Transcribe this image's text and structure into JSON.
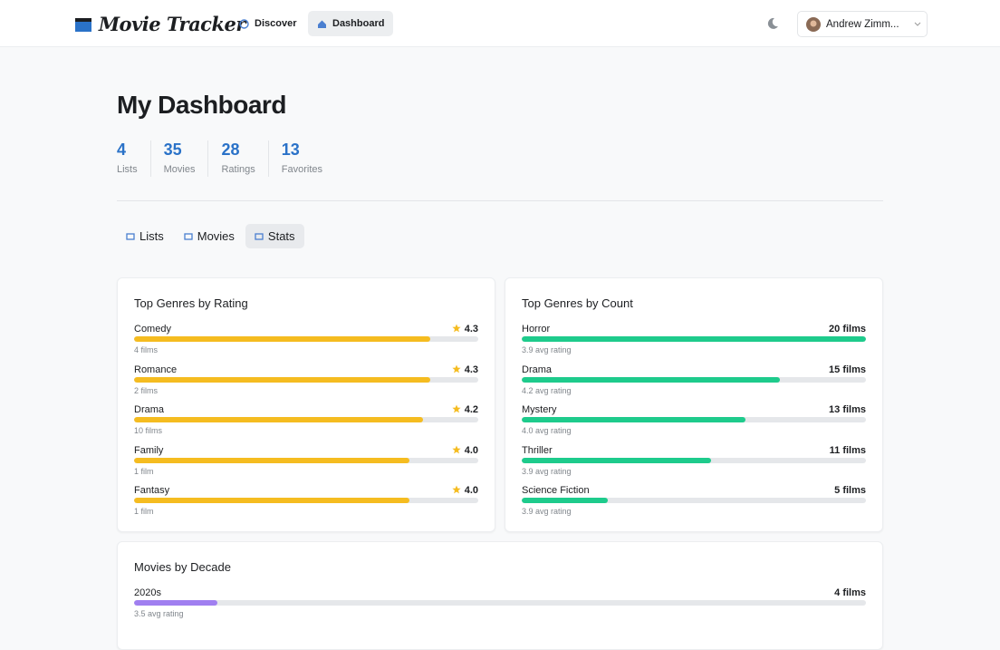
{
  "header": {
    "brand": "Movie Tracker",
    "nav": [
      "Discover",
      "Dashboard"
    ],
    "user": "Andrew Zimm..."
  },
  "page": {
    "title": "My Dashboard",
    "stats": [
      {
        "value": 4,
        "label": "Lists"
      },
      {
        "value": 35,
        "label": "Movies"
      },
      {
        "value": 28,
        "label": "Ratings"
      },
      {
        "value": 13,
        "label": "Favorites"
      }
    ],
    "tabs": [
      "Lists",
      "Movies",
      "Stats"
    ]
  },
  "panels": [
    {
      "title": "Top Genres by Rating",
      "color": "#f5bc20",
      "xlim": [
        0,
        5
      ],
      "items": [
        {
          "name": "Comedy",
          "value": 4.3,
          "value_label": "4.3",
          "sub": "4 films"
        },
        {
          "name": "Romance",
          "value": 4.3,
          "value_label": "4.3",
          "sub": "2 films"
        },
        {
          "name": "Drama",
          "value": 4.2,
          "value_label": "4.2",
          "sub": "10 films"
        },
        {
          "name": "Family",
          "value": 4.0,
          "value_label": "4.0",
          "sub": "1 film"
        },
        {
          "name": "Fantasy",
          "value": 4.0,
          "value_label": "4.0",
          "sub": "1 film"
        }
      ]
    },
    {
      "title": "Top Genres by Count",
      "color": "#1ecb8c",
      "xlim": [
        0,
        20
      ],
      "items": [
        {
          "name": "Horror",
          "value": 20,
          "value_label": "20 films",
          "sub": "3.9 avg rating"
        },
        {
          "name": "Drama",
          "value": 15,
          "value_label": "15 films",
          "sub": "4.2 avg rating"
        },
        {
          "name": "Mystery",
          "value": 13,
          "value_label": "13 films",
          "sub": "4.0 avg rating"
        },
        {
          "name": "Thriller",
          "value": 11,
          "value_label": "11 films",
          "sub": "3.9 avg rating"
        },
        {
          "name": "Science Fiction",
          "value": 5,
          "value_label": "5 films",
          "sub": "3.9 avg rating"
        }
      ]
    },
    {
      "title": "Movies by Decade",
      "color": "#a07ff0",
      "xlim": [
        0,
        35
      ],
      "items": [
        {
          "name": "2020s",
          "value": 4,
          "value_label": "4 films",
          "sub": "3.5 avg rating"
        }
      ]
    }
  ]
}
